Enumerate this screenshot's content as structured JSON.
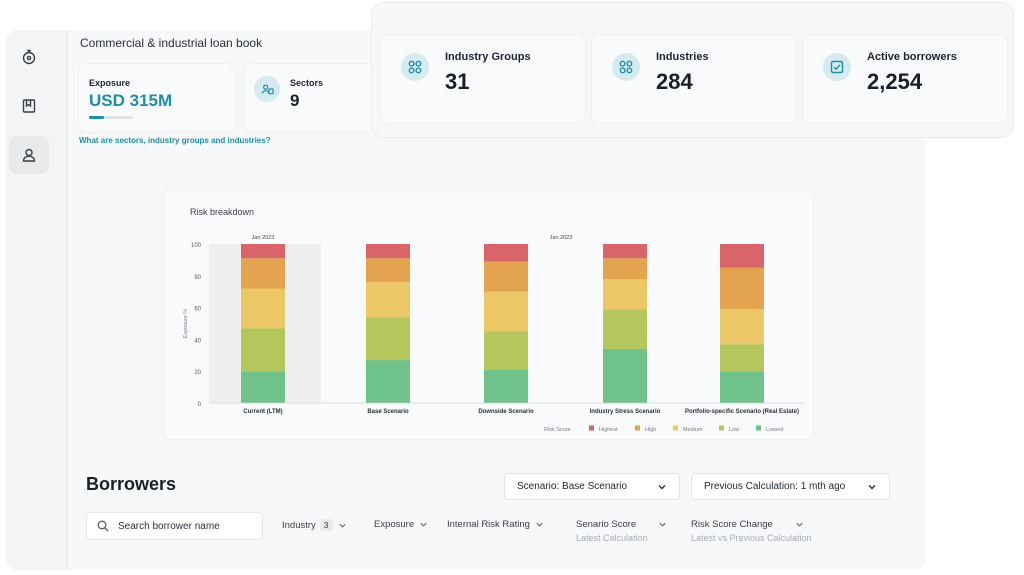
{
  "page": {
    "title": "Commercial & industrial loan book"
  },
  "sidebar": {
    "items": [
      {
        "icon": "dashboard-icon"
      },
      {
        "icon": "book-icon"
      },
      {
        "icon": "user-icon",
        "active": true
      }
    ]
  },
  "metrics": {
    "exposure": {
      "label": "Exposure",
      "value": "USD 315M",
      "progress": 0.35
    },
    "sectors": {
      "label": "Sectors",
      "value": "9"
    },
    "industry_groups": {
      "label": "Industry Groups",
      "value": "31"
    },
    "industries": {
      "label": "Industries",
      "value": "284"
    },
    "active_borrowers": {
      "label": "Active borrowers",
      "value": "2,254"
    }
  },
  "help_link": "What are sectors, industry groups and industries?",
  "colors": {
    "accent": "#1c8fa6",
    "highest": "#d9646a",
    "high": "#e3a34f",
    "medium": "#ecc765",
    "low": "#b5c65c",
    "lowest": "#6fc289"
  },
  "chart_data": {
    "type": "bar",
    "stacked": true,
    "title": "Risk breakdown",
    "ylabel": "Exposure %",
    "ylim": [
      0,
      100
    ],
    "yticks": [
      "0",
      "20",
      "40",
      "60",
      "80",
      "100"
    ],
    "categories": [
      "Current (LTM)",
      "Base Scenario",
      "Downside Scenario",
      "Industry Stress Scenario",
      "Portfolio-specific Scenario (Real Estate)"
    ],
    "annotations": [
      "Jan 2023",
      "Jan 2023"
    ],
    "grid": false,
    "legend_position": "bottom-right",
    "legend_title": "Risk Score",
    "series": [
      {
        "name": "Lowest",
        "color": "#6fc289",
        "values": [
          20,
          27,
          21,
          34,
          20
        ]
      },
      {
        "name": "Low",
        "color": "#b5c65c",
        "values": [
          27,
          27,
          24,
          25,
          17
        ]
      },
      {
        "name": "Medium",
        "color": "#ecc765",
        "values": [
          25,
          22,
          25,
          19,
          22
        ]
      },
      {
        "name": "High",
        "color": "#e3a34f",
        "values": [
          19,
          15,
          19,
          13,
          26
        ]
      },
      {
        "name": "Highest",
        "color": "#d9646a",
        "values": [
          9,
          9,
          11,
          9,
          15
        ]
      }
    ],
    "legend_order": [
      "Highest",
      "High",
      "Medium",
      "Low",
      "Lowest"
    ]
  },
  "borrowers": {
    "title": "Borrowers",
    "scenario_select": "Scenario: Base Scenario",
    "calc_select": "Previous Calculation: 1 mth ago",
    "search_placeholder": "Search borrower name",
    "filters": {
      "industry": {
        "label": "Industry",
        "count": "3"
      },
      "exposure": {
        "label": "Exposure"
      },
      "internal_risk": {
        "label": "Internal Risk Rating"
      },
      "senario_score": {
        "label": "Senario Score",
        "sub": "Latest Calculation"
      },
      "risk_change": {
        "label": "Risk Score Change",
        "sub": "Latest vs Previous Calculation"
      }
    }
  }
}
